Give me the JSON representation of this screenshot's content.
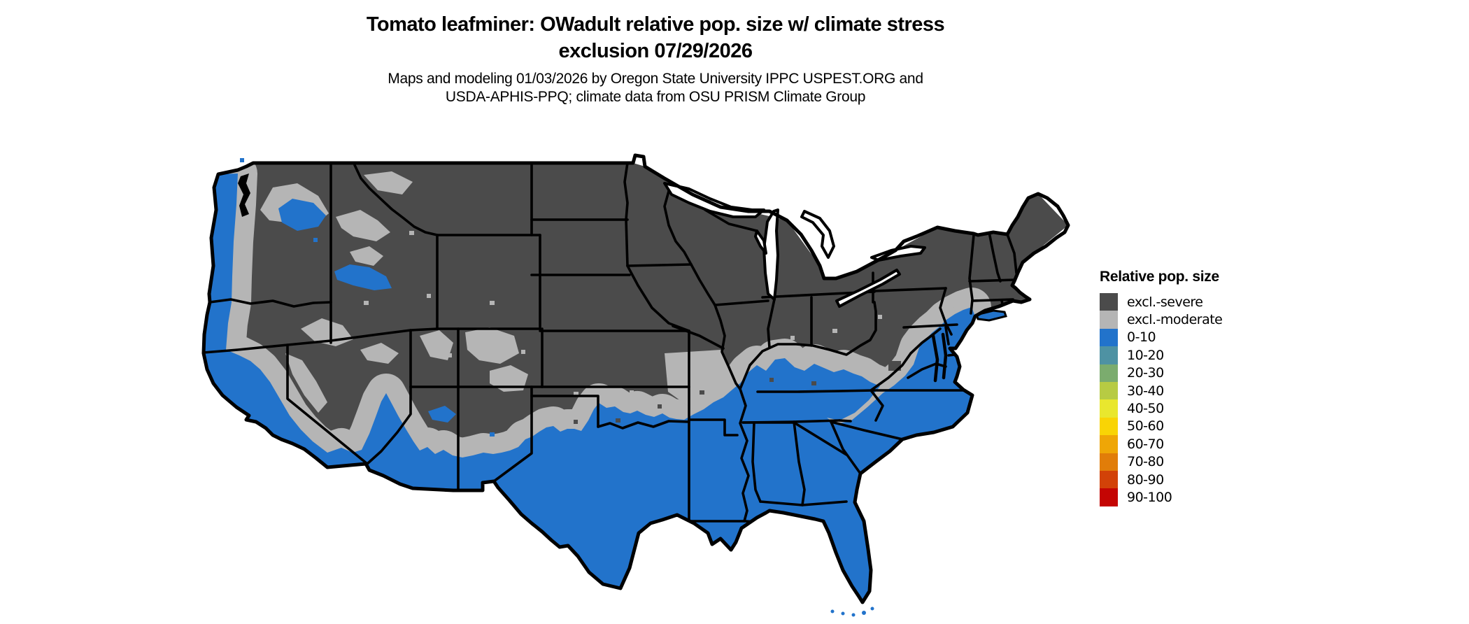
{
  "title": {
    "line1": "Tomato leafminer: OWadult relative pop. size w/ climate stress",
    "line2": "exclusion 07/29/2026"
  },
  "subtitle": {
    "line1": "Maps and modeling 01/03/2026 by Oregon State University IPPC USPEST.ORG and",
    "line2": "USDA-APHIS-PPQ; climate data from OSU PRISM Climate Group"
  },
  "legend": {
    "title": "Relative pop. size",
    "items": [
      {
        "label": "excl.-severe",
        "color": "#4B4B4B"
      },
      {
        "label": "excl.-moderate",
        "color": "#B5B5B5"
      },
      {
        "label": "0-10",
        "color": "#2273CB"
      },
      {
        "label": "10-20",
        "color": "#4E92A3"
      },
      {
        "label": "20-30",
        "color": "#7BAC6E"
      },
      {
        "label": "30-40",
        "color": "#B7CB43"
      },
      {
        "label": "40-50",
        "color": "#E9E72E"
      },
      {
        "label": "50-60",
        "color": "#F9D405"
      },
      {
        "label": "60-70",
        "color": "#EFA606"
      },
      {
        "label": "70-80",
        "color": "#E17D09"
      },
      {
        "label": "80-90",
        "color": "#D24208"
      },
      {
        "label": "90-100",
        "color": "#C40503"
      }
    ]
  },
  "map": {
    "type": "choropleth-raster",
    "region": "Contiguous United States",
    "colors": {
      "severe": "#4B4B4B",
      "moderate": "#B5B5B5",
      "zone0to10": "#2273CB",
      "border": "#000000",
      "water": "#FFFFFF"
    },
    "zones": [
      {
        "category": "excl.-severe",
        "area": "Northern states, Rockies, Great Basin, Midwest and Northeast interior"
      },
      {
        "category": "excl.-moderate",
        "area": "Transition band: central plains, lower Midwest, Appalachians, mid-Atlantic interior, western mountain fringes"
      },
      {
        "category": "0-10",
        "area": "Pacific coastal strip, California valleys, southern Arizona and New Mexico, Texas, Gulf states, Southeast, Atlantic coastal plain"
      }
    ]
  }
}
